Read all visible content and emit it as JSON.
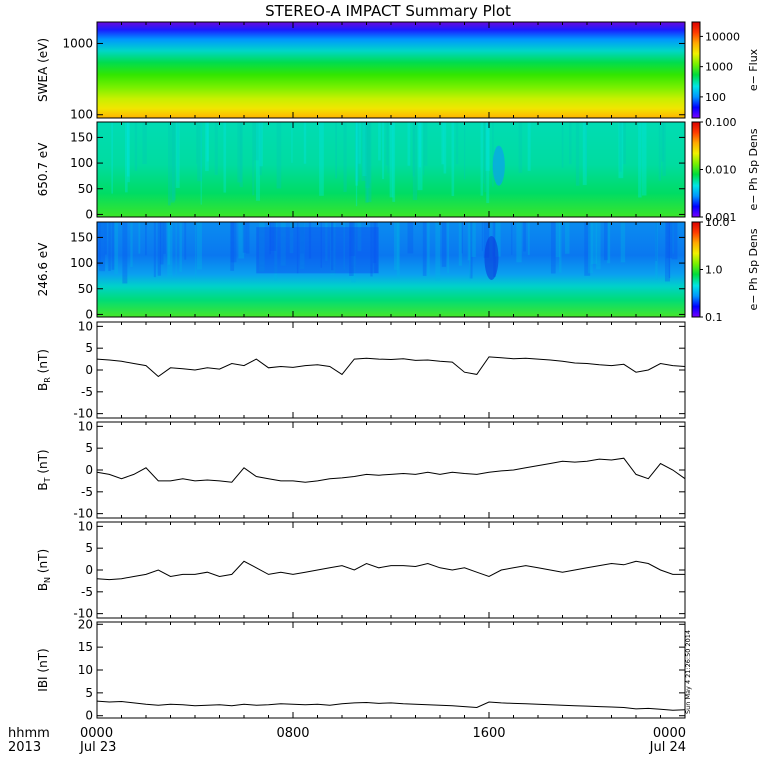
{
  "title": "STEREO-A IMPACT Summary Plot",
  "timestamp": "Sun May  4 21:26:50 2014",
  "time_axis": {
    "row1_labels": [
      "hhmm",
      "0000",
      "0800",
      "1600",
      "0000"
    ],
    "row2_labels": [
      "2013",
      "Jul 23",
      "",
      "",
      "Jul 24"
    ],
    "range_hours": [
      0,
      24
    ],
    "major_ticks_hours": [
      0,
      8,
      16,
      24
    ],
    "minor_tick_step_hours": 1
  },
  "colors": {
    "line": "#000000",
    "colorbar_stops": [
      "#7800ff",
      "#0000ff",
      "#0096ff",
      "#00e6e6",
      "#00dc3c",
      "#78f000",
      "#f0f000",
      "#ffaa00",
      "#ff3c00",
      "#dc0000"
    ]
  },
  "chart_data": [
    {
      "type": "heatmap",
      "name": "swea",
      "ylabel": "SWEA (eV)",
      "yscale": "log",
      "ylim": [
        90,
        2000
      ],
      "yticks": [
        100,
        1000
      ],
      "ytick_labels": [
        "100",
        "1000"
      ],
      "colorbar": {
        "label": "e− Flux",
        "scale": "log",
        "range": [
          20,
          30000
        ],
        "ticks": [
          100,
          1000,
          10000
        ],
        "tick_labels": [
          "100",
          "1000",
          "10000"
        ]
      }
    },
    {
      "type": "heatmap",
      "name": "pad_650",
      "ylabel": "650.7 eV",
      "ylim": [
        -5,
        180
      ],
      "yticks": [
        0,
        50,
        100,
        150
      ],
      "ytick_labels": [
        "0",
        "50",
        "100",
        "150"
      ],
      "colorbar": {
        "label": "e− Ph Sp Dens",
        "scale": "log",
        "range": [
          0.001,
          0.1
        ],
        "ticks": [
          0.001,
          0.01,
          0.1
        ],
        "tick_labels": [
          "0.001",
          "0.010",
          "0.100"
        ]
      }
    },
    {
      "type": "heatmap",
      "name": "pad_246",
      "ylabel": "246.6 eV",
      "ylim": [
        -5,
        180
      ],
      "yticks": [
        0,
        50,
        100,
        150
      ],
      "ytick_labels": [
        "0",
        "50",
        "100",
        "150"
      ],
      "colorbar": {
        "label": "e− Ph Sp Dens",
        "scale": "log",
        "range": [
          0.1,
          10
        ],
        "ticks": [
          0.1,
          1,
          10
        ],
        "tick_labels": [
          "0.1",
          "1.0",
          "10.0"
        ]
      }
    },
    {
      "type": "line",
      "name": "br",
      "ylabel": "B",
      "ylabel_sub": "R",
      "ylabel_unit": "(nT)",
      "ylim": [
        -11,
        11
      ],
      "yticks": [
        -10,
        -5,
        0,
        5,
        10
      ],
      "ytick_labels": [
        "-10",
        "-5",
        "0",
        "5",
        "10"
      ],
      "x": [
        0,
        0.5,
        1,
        1.5,
        2,
        2.5,
        3,
        3.5,
        4,
        4.5,
        5,
        5.5,
        6,
        6.5,
        7,
        7.5,
        8,
        8.5,
        9,
        9.5,
        10,
        10.5,
        11,
        11.5,
        12,
        12.5,
        13,
        13.5,
        14,
        14.5,
        15,
        15.5,
        16,
        16.5,
        17,
        17.5,
        18,
        18.5,
        19,
        19.5,
        20,
        20.5,
        21,
        21.5,
        22,
        22.5,
        23,
        23.5,
        24
      ],
      "values": [
        2.5,
        2.3,
        2.0,
        1.5,
        1.0,
        -1.5,
        0.5,
        0.3,
        0.0,
        0.5,
        0.2,
        1.5,
        1.0,
        2.5,
        0.5,
        0.8,
        0.6,
        1.0,
        1.2,
        0.8,
        -1.0,
        2.5,
        2.7,
        2.5,
        2.4,
        2.6,
        2.2,
        2.3,
        2.0,
        1.8,
        -0.5,
        -1.0,
        3.0,
        2.8,
        2.6,
        2.7,
        2.5,
        2.3,
        2.0,
        1.6,
        1.5,
        1.2,
        1.0,
        1.3,
        -0.5,
        0.0,
        1.5,
        1.0,
        0.8
      ]
    },
    {
      "type": "line",
      "name": "bt",
      "ylabel": "B",
      "ylabel_sub": "T",
      "ylabel_unit": "(nT)",
      "ylim": [
        -11,
        11
      ],
      "yticks": [
        -10,
        -5,
        0,
        5,
        10
      ],
      "ytick_labels": [
        "-10",
        "-5",
        "0",
        "5",
        "10"
      ],
      "x": [
        0,
        0.5,
        1,
        1.5,
        2,
        2.5,
        3,
        3.5,
        4,
        4.5,
        5,
        5.5,
        6,
        6.5,
        7,
        7.5,
        8,
        8.5,
        9,
        9.5,
        10,
        10.5,
        11,
        11.5,
        12,
        12.5,
        13,
        13.5,
        14,
        14.5,
        15,
        15.5,
        16,
        16.5,
        17,
        17.5,
        18,
        18.5,
        19,
        19.5,
        20,
        20.5,
        21,
        21.5,
        22,
        22.5,
        23,
        23.5,
        24
      ],
      "values": [
        -0.5,
        -1.0,
        -2.0,
        -1.0,
        0.5,
        -2.5,
        -2.5,
        -2.0,
        -2.5,
        -2.3,
        -2.5,
        -2.8,
        0.5,
        -1.5,
        -2.0,
        -2.5,
        -2.5,
        -2.8,
        -2.5,
        -2.0,
        -1.8,
        -1.5,
        -1.0,
        -1.2,
        -1.0,
        -0.8,
        -1.0,
        -0.5,
        -1.0,
        -0.5,
        -0.8,
        -1.0,
        -0.5,
        -0.2,
        0.0,
        0.5,
        1.0,
        1.5,
        2.0,
        1.8,
        2.0,
        2.5,
        2.3,
        2.7,
        -1.0,
        -2.0,
        1.5,
        0.0,
        -2.0
      ]
    },
    {
      "type": "line",
      "name": "bn",
      "ylabel": "B",
      "ylabel_sub": "N",
      "ylabel_unit": "(nT)",
      "ylim": [
        -11,
        11
      ],
      "yticks": [
        -10,
        -5,
        0,
        5,
        10
      ],
      "ytick_labels": [
        "-10",
        "-5",
        "0",
        "5",
        "10"
      ],
      "x": [
        0,
        0.5,
        1,
        1.5,
        2,
        2.5,
        3,
        3.5,
        4,
        4.5,
        5,
        5.5,
        6,
        6.5,
        7,
        7.5,
        8,
        8.5,
        9,
        9.5,
        10,
        10.5,
        11,
        11.5,
        12,
        12.5,
        13,
        13.5,
        14,
        14.5,
        15,
        15.5,
        16,
        16.5,
        17,
        17.5,
        18,
        18.5,
        19,
        19.5,
        20,
        20.5,
        21,
        21.5,
        22,
        22.5,
        23,
        23.5,
        24
      ],
      "values": [
        -2.0,
        -2.2,
        -2.0,
        -1.5,
        -1.0,
        0.0,
        -1.5,
        -1.0,
        -1.0,
        -0.5,
        -1.5,
        -1.0,
        2.0,
        0.5,
        -1.0,
        -0.5,
        -1.0,
        -0.5,
        0.0,
        0.5,
        1.0,
        0.0,
        1.5,
        0.5,
        1.0,
        1.0,
        0.8,
        1.5,
        0.5,
        0.0,
        0.5,
        -0.5,
        -1.5,
        0.0,
        0.5,
        1.0,
        0.5,
        0.0,
        -0.5,
        0.0,
        0.5,
        1.0,
        1.5,
        1.2,
        2.0,
        1.5,
        0.0,
        -1.0,
        -1.0
      ]
    },
    {
      "type": "line",
      "name": "bmag",
      "ylabel": "IBI (nT)",
      "ylim": [
        -0.5,
        20.5
      ],
      "yticks": [
        0,
        5,
        10,
        15,
        20
      ],
      "ytick_labels": [
        "0",
        "5",
        "10",
        "15",
        "20"
      ],
      "x": [
        0,
        0.5,
        1,
        1.5,
        2,
        2.5,
        3,
        3.5,
        4,
        4.5,
        5,
        5.5,
        6,
        6.5,
        7,
        7.5,
        8,
        8.5,
        9,
        9.5,
        10,
        10.5,
        11,
        11.5,
        12,
        12.5,
        13,
        13.5,
        14,
        14.5,
        15,
        15.5,
        16,
        16.5,
        17,
        17.5,
        18,
        18.5,
        19,
        19.5,
        20,
        20.5,
        21,
        21.5,
        22,
        22.5,
        23,
        23.5,
        24
      ],
      "values": [
        3.2,
        3.0,
        3.1,
        2.8,
        2.5,
        2.3,
        2.5,
        2.4,
        2.2,
        2.3,
        2.4,
        2.2,
        2.5,
        2.3,
        2.4,
        2.6,
        2.5,
        2.4,
        2.5,
        2.3,
        2.6,
        2.8,
        2.9,
        2.7,
        2.8,
        2.6,
        2.5,
        2.4,
        2.3,
        2.2,
        2.0,
        1.8,
        3.0,
        2.8,
        2.7,
        2.6,
        2.5,
        2.4,
        2.3,
        2.2,
        2.1,
        2.0,
        1.9,
        1.8,
        1.5,
        1.6,
        1.4,
        1.2,
        1.3
      ]
    }
  ]
}
